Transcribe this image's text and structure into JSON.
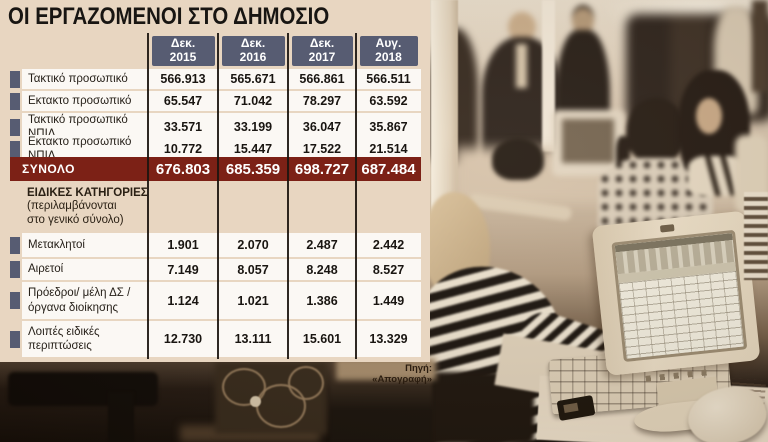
{
  "title": "ΟΙ ΕΡΓΑΖΟΜΕΝΟΙ ΣΤΟ ΔΗΜΟΣΙΟ",
  "source": "Πηγή: «Απογραφή»",
  "colors": {
    "panel_bg": "#e8d6c1",
    "header_bg": "#575c72",
    "total_bg": "#7c2116",
    "row_bg": "#fbf8f4",
    "grid_line": "#1c1610"
  },
  "table": {
    "columns": [
      "Δεκ.\n2015",
      "Δεκ.\n2016",
      "Δεκ.\n2017",
      "Αυγ.\n2018"
    ],
    "rows": [
      {
        "label": "Τακτικό προσωπικό",
        "values": [
          "566.913",
          "565.671",
          "566.861",
          "566.511"
        ]
      },
      {
        "label": "Εκτακτο προσωπικό",
        "values": [
          "65.547",
          "71.042",
          "78.297",
          "63.592"
        ]
      },
      {
        "label": "Τακτικό προσωπικό ΝΠΙΔ",
        "values": [
          "33.571",
          "33.199",
          "36.047",
          "35.867"
        ]
      },
      {
        "label": "Εκτακτο προσωπικό ΝΠΙΔ",
        "values": [
          "10.772",
          "15.447",
          "17.522",
          "21.514"
        ]
      }
    ],
    "total": {
      "label": "ΣΥΝΟΛΟ",
      "values": [
        "676.803",
        "685.359",
        "698.727",
        "687.484"
      ]
    },
    "section_title": "ΕΙΔΙΚΕΣ ΚΑΤΗΓΟΡΙΕΣ",
    "section_subtitle": "(περιλαμβάνονται\nστο γενικό σύνολο)",
    "special_rows": [
      {
        "label": "Μετακλητοί",
        "values": [
          "1.901",
          "2.070",
          "2.487",
          "2.442"
        ]
      },
      {
        "label": "Αιρετοί",
        "values": [
          "7.149",
          "8.057",
          "8.248",
          "8.527"
        ]
      },
      {
        "label": "Πρόεδροι/ μέλη ΔΣ / όργανα διοίκησης",
        "values": [
          "1.124",
          "1.021",
          "1.386",
          "1.449"
        ]
      },
      {
        "label": "Λοιπές ειδικές περιπτώσεις",
        "values": [
          "12.730",
          "13.111",
          "15.601",
          "13.329"
        ]
      }
    ]
  },
  "chart_data": {
    "type": "table",
    "title": "ΟΙ ΕΡΓΑΖΟΜΕΝΟΙ ΣΤΟ ΔΗΜΟΣΙΟ",
    "categories": [
      "Δεκ. 2015",
      "Δεκ. 2016",
      "Δεκ. 2017",
      "Αυγ. 2018"
    ],
    "series": [
      {
        "name": "Τακτικό προσωπικό",
        "values": [
          566913,
          565671,
          566861,
          566511
        ]
      },
      {
        "name": "Εκτακτο προσωπικό",
        "values": [
          65547,
          71042,
          78297,
          63592
        ]
      },
      {
        "name": "Τακτικό προσωπικό ΝΠΙΔ",
        "values": [
          33571,
          33199,
          36047,
          35867
        ]
      },
      {
        "name": "Εκτακτο προσωπικό ΝΠΙΔ",
        "values": [
          10772,
          15447,
          17522,
          21514
        ]
      },
      {
        "name": "ΣΥΝΟΛΟ",
        "values": [
          676803,
          685359,
          698727,
          687484
        ]
      },
      {
        "name": "Μετακλητοί",
        "values": [
          1901,
          2070,
          2487,
          2442
        ]
      },
      {
        "name": "Αιρετοί",
        "values": [
          7149,
          8057,
          8248,
          8527
        ]
      },
      {
        "name": "Πρόεδροι/ μέλη ΔΣ / όργανα διοίκησης",
        "values": [
          1124,
          1021,
          1386,
          1449
        ]
      },
      {
        "name": "Λοιπές ειδικές περιπτώσεις",
        "values": [
          12730,
          13111,
          15601,
          13329
        ]
      }
    ],
    "notes": "ΕΙΔΙΚΕΣ ΚΑΤΗΓΟΡΙΕΣ (περιλαμβάνονται στο γενικό σύνολο): Μετακλητοί, Αιρετοί, Πρόεδροι/μέλη ΔΣ/όργανα διοίκησης, Λοιπές ειδικές περιπτώσεις",
    "source": "Πηγή: «Απογραφή»"
  }
}
